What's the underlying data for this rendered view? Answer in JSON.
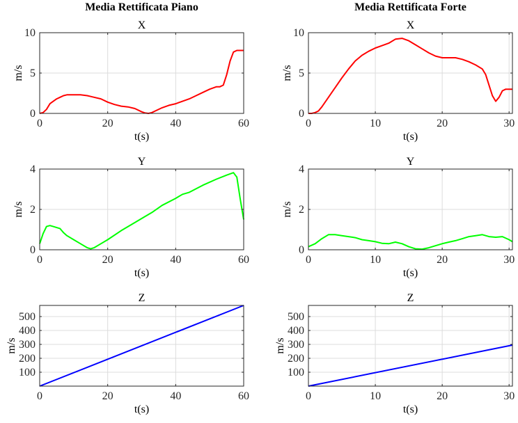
{
  "figure": {
    "column_titles": [
      "Media Rettificata Piano",
      "Media Rettificata Forte"
    ]
  },
  "chart_data": [
    {
      "type": "line",
      "column": 0,
      "row": 0,
      "title": "X",
      "xlabel": "t(s)",
      "ylabel": "m/s",
      "xlim": [
        0,
        60
      ],
      "ylim": [
        0,
        10
      ],
      "xticks": [
        0,
        20,
        40,
        60
      ],
      "yticks": [
        0,
        5,
        10
      ],
      "grid": true,
      "series": [
        {
          "color": "#ff0000",
          "x": [
            0,
            1,
            2,
            3,
            4,
            5,
            6,
            7,
            8,
            10,
            12,
            14,
            16,
            18,
            20,
            22,
            24,
            26,
            28,
            30,
            31,
            32,
            33,
            34,
            36,
            38,
            40,
            42,
            44,
            46,
            48,
            50,
            52,
            53,
            54,
            55,
            56,
            57,
            58,
            59,
            60
          ],
          "y": [
            0,
            0.1,
            0.5,
            1.2,
            1.5,
            1.8,
            2.0,
            2.2,
            2.3,
            2.3,
            2.3,
            2.2,
            2.0,
            1.8,
            1.4,
            1.1,
            0.9,
            0.8,
            0.6,
            0.2,
            0.05,
            0.0,
            0.1,
            0.3,
            0.7,
            1.0,
            1.2,
            1.5,
            1.8,
            2.2,
            2.6,
            3.0,
            3.3,
            3.3,
            3.5,
            4.8,
            6.5,
            7.6,
            7.8,
            7.8,
            7.8
          ]
        }
      ]
    },
    {
      "type": "line",
      "column": 1,
      "row": 0,
      "title": "X",
      "xlabel": "t(s)",
      "ylabel": "m/s",
      "xlim": [
        0,
        30.5
      ],
      "ylim": [
        0,
        10
      ],
      "xticks": [
        0,
        10,
        20,
        30
      ],
      "yticks": [
        0,
        5,
        10
      ],
      "grid": true,
      "series": [
        {
          "color": "#ff0000",
          "x": [
            0,
            0.5,
            1,
            1.5,
            2,
            3,
            4,
            5,
            6,
            7,
            8,
            9,
            10,
            11,
            12,
            13,
            14,
            15,
            16,
            17,
            18,
            19,
            20,
            21,
            22,
            23,
            24,
            25,
            26,
            26.5,
            27,
            27.5,
            28,
            28.5,
            29,
            29.5,
            30,
            30.5
          ],
          "y": [
            0,
            0.0,
            0.1,
            0.3,
            0.8,
            2.0,
            3.2,
            4.4,
            5.5,
            6.5,
            7.2,
            7.7,
            8.1,
            8.4,
            8.7,
            9.2,
            9.3,
            9.0,
            8.5,
            8.0,
            7.5,
            7.1,
            6.9,
            6.9,
            6.9,
            6.7,
            6.4,
            6.0,
            5.5,
            4.8,
            3.5,
            2.2,
            1.5,
            2.0,
            2.8,
            3.0,
            3.0,
            3.0
          ]
        }
      ]
    },
    {
      "type": "line",
      "column": 0,
      "row": 1,
      "title": "Y",
      "xlabel": "t(s)",
      "ylabel": "m/s",
      "xlim": [
        0,
        60
      ],
      "ylim": [
        0,
        4
      ],
      "xticks": [
        0,
        20,
        40,
        60
      ],
      "yticks": [
        0,
        2,
        4
      ],
      "grid": true,
      "series": [
        {
          "color": "#00ff00",
          "x": [
            0,
            1,
            2,
            3,
            4,
            5,
            6,
            7,
            8,
            10,
            12,
            14,
            15,
            16,
            18,
            20,
            24,
            28,
            31,
            33,
            36,
            40,
            42,
            44,
            48,
            52,
            55,
            57,
            58,
            59,
            60
          ],
          "y": [
            0.3,
            0.8,
            1.15,
            1.2,
            1.15,
            1.1,
            1.05,
            0.85,
            0.7,
            0.5,
            0.3,
            0.1,
            0.05,
            0.1,
            0.3,
            0.5,
            0.95,
            1.35,
            1.65,
            1.85,
            2.2,
            2.55,
            2.75,
            2.85,
            3.2,
            3.5,
            3.7,
            3.82,
            3.6,
            2.5,
            1.5
          ]
        }
      ]
    },
    {
      "type": "line",
      "column": 1,
      "row": 1,
      "title": "Y",
      "xlabel": "t(s)",
      "ylabel": "m/s",
      "xlim": [
        0,
        30.5
      ],
      "ylim": [
        0,
        4
      ],
      "xticks": [
        0,
        10,
        20,
        30
      ],
      "yticks": [
        0,
        2,
        4
      ],
      "grid": true,
      "series": [
        {
          "color": "#00ff00",
          "x": [
            0,
            1,
            2,
            3,
            4,
            5,
            6,
            7,
            8,
            9,
            10,
            11,
            12,
            13,
            14,
            15,
            16,
            17,
            18,
            19,
            20,
            21,
            22,
            23,
            24,
            25,
            26,
            27,
            28,
            29,
            30,
            30.5
          ],
          "y": [
            0.15,
            0.3,
            0.55,
            0.75,
            0.75,
            0.7,
            0.65,
            0.6,
            0.5,
            0.45,
            0.4,
            0.32,
            0.3,
            0.38,
            0.3,
            0.15,
            0.05,
            0.03,
            0.1,
            0.2,
            0.3,
            0.38,
            0.45,
            0.55,
            0.65,
            0.7,
            0.75,
            0.65,
            0.62,
            0.65,
            0.5,
            0.4
          ]
        }
      ]
    },
    {
      "type": "line",
      "column": 0,
      "row": 2,
      "title": "Z",
      "xlabel": "t(s)",
      "ylabel": "m/s",
      "xlim": [
        0,
        60
      ],
      "ylim": [
        0,
        580
      ],
      "xticks": [
        0,
        20,
        40,
        60
      ],
      "yticks": [
        100,
        200,
        300,
        400,
        500
      ],
      "grid": true,
      "series": [
        {
          "color": "#0000ff",
          "x": [
            0,
            60
          ],
          "y": [
            0,
            580
          ]
        }
      ]
    },
    {
      "type": "line",
      "column": 1,
      "row": 2,
      "title": "Z",
      "xlabel": "t(s)",
      "ylabel": "m/s",
      "xlim": [
        0,
        30.5
      ],
      "ylim": [
        0,
        580
      ],
      "xticks": [
        0,
        10,
        20,
        30
      ],
      "yticks": [
        100,
        200,
        300,
        400,
        500
      ],
      "grid": true,
      "series": [
        {
          "color": "#0000ff",
          "x": [
            0,
            30.5
          ],
          "y": [
            0,
            295
          ]
        }
      ]
    }
  ]
}
